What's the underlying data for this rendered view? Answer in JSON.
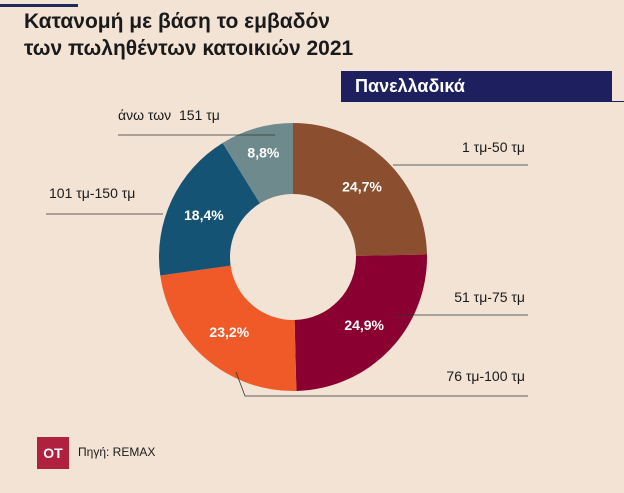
{
  "title_line1": "Κατανομή με βάση το εμβαδόν",
  "title_line2": "των πωληθέντων κατοικιών 2021",
  "badge": "Πανελλαδικά",
  "logo_text": "ΟΤ",
  "source": "Πηγή: REMAX",
  "chart_data": {
    "type": "pie",
    "donut": true,
    "labels": [
      "1 τμ-50 τμ",
      "51 τμ-75 τμ",
      "76 τμ-100 τμ",
      "101 τμ-150 τμ",
      "άνω των  151 τμ"
    ],
    "values": [
      24.7,
      24.9,
      23.2,
      18.4,
      8.8
    ],
    "value_labels": [
      "24,7%",
      "24,9%",
      "23,2%",
      "18,4%",
      "8,8%"
    ],
    "colors": [
      "#8b4e2e",
      "#8a0030",
      "#f05a28",
      "#145374",
      "#6e8a8c"
    ],
    "legend": "callout labels around the ring"
  }
}
